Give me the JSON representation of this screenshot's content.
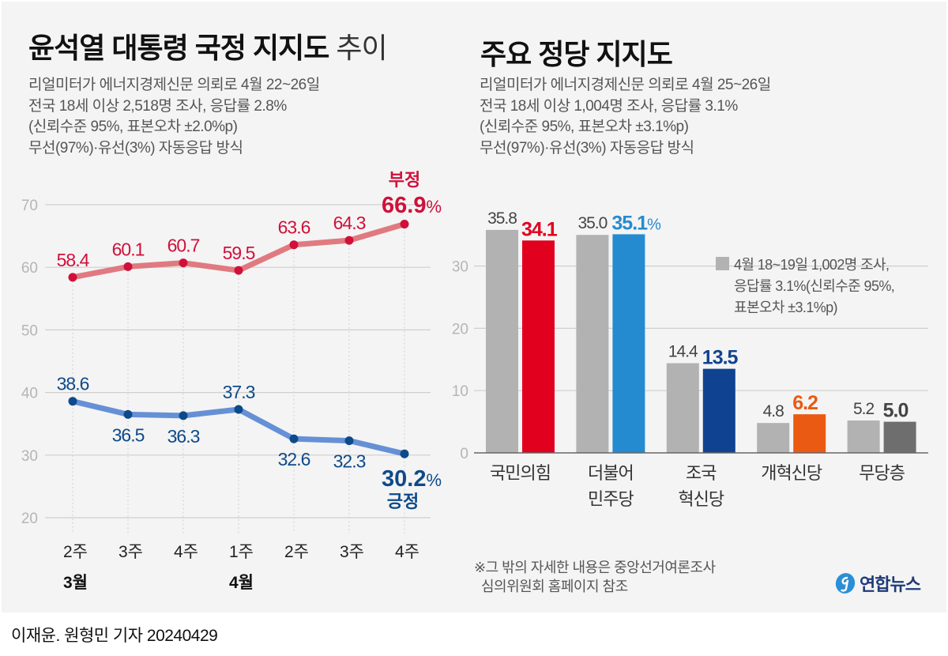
{
  "left": {
    "title_bold": "윤석열 대통령 국정 지지도",
    "title_light": "추이",
    "subtitle_lines": [
      "리얼미터가 에너지경제신문 의뢰로 4월 22~26일",
      "전국 18세 이상 2,518명 조사, 응답률 2.8%",
      "(신뢰수준 95%, 표본오차 ±2.0%p)",
      "무선(97%)·유선(3%) 자동응답 방식"
    ]
  },
  "right": {
    "title": "주요 정당 지지도",
    "subtitle_lines": [
      "리얼미터가 에너지경제신문 의뢰로 4월 25~26일",
      "전국 18세 이상 1,004명 조사, 응답률 3.1%",
      "(신뢰수준 95%, 표본오차 ±3.1%p)",
      "무선(97%)·유선(3%) 자동응답 방식"
    ]
  },
  "chart_data": [
    {
      "type": "line",
      "title": "윤석열 대통령 국정 지지도 추이",
      "categories": [
        "2주",
        "3주",
        "4주",
        "1주",
        "2주",
        "3주",
        "4주"
      ],
      "month_labels": [
        {
          "index": 0,
          "label": "3월"
        },
        {
          "index": 3,
          "label": "4월"
        }
      ],
      "yticks": [
        70,
        60,
        50,
        40,
        30,
        20
      ],
      "ylim": [
        20,
        70
      ],
      "grid": true,
      "series": [
        {
          "name": "부정",
          "color": "#d0103a",
          "line_color": "#e07a80",
          "values": [
            58.4,
            60.1,
            60.7,
            59.5,
            63.6,
            64.3,
            66.9
          ],
          "labels": [
            "58.4",
            "60.1",
            "60.7",
            "59.5",
            "63.6",
            "64.3",
            "66.9"
          ],
          "last_label_suffix": "%"
        },
        {
          "name": "긍정",
          "color": "#0e4a8a",
          "line_color": "#6690d6",
          "values": [
            38.6,
            36.5,
            36.3,
            37.3,
            32.6,
            32.3,
            30.2
          ],
          "labels": [
            "38.6",
            "36.5",
            "36.3",
            "37.3",
            "32.6",
            "32.3",
            "30.2"
          ],
          "last_label_suffix": "%"
        }
      ]
    },
    {
      "type": "bar",
      "title": "주요 정당 지지도",
      "categories": [
        "국민의힘",
        "더불어\n민주당",
        "조국\n혁신당",
        "개혁신당",
        "무당층"
      ],
      "yticks": [
        30,
        20,
        10,
        0
      ],
      "ylim": [
        0,
        35
      ],
      "grid": true,
      "series": [
        {
          "name": "4월 18~19일 1,002명 조사",
          "color": "#b2b2b2",
          "values": [
            35.8,
            35.0,
            14.4,
            4.8,
            5.2
          ],
          "labels": [
            "35.8",
            "35.0",
            "14.4",
            "4.8",
            "5.2"
          ]
        },
        {
          "name": "4월 25~26일",
          "colors": [
            "#e2001f",
            "#258bd0",
            "#0f4392",
            "#ea5a13",
            "#6e6e6e"
          ],
          "label_colors": [
            "#e2001f",
            "#258bd0",
            "#0f4392",
            "#ea5a13",
            "#444444"
          ],
          "values": [
            34.1,
            35.1,
            13.5,
            6.2,
            5.0
          ],
          "labels": [
            "34.1",
            "35.1%",
            "13.5",
            "6.2",
            "5.0"
          ]
        }
      ],
      "legend": {
        "placement": "right",
        "swatch_color": "#b2b2b2",
        "lines": [
          "4월 18~19일 1,002명 조사,",
          "응답률 3.1%(신뢰수준 95%,",
          "표본오차 ±3.1%p)"
        ]
      }
    }
  ],
  "footer": {
    "note_lines": [
      "※그 밖의 자세한 내용은 중앙선거여론조사",
      "  심의위원회 홈페이지 참조"
    ],
    "logo_text": "연합뉴스",
    "byline": "이재윤. 원형민 기자  20240429"
  }
}
